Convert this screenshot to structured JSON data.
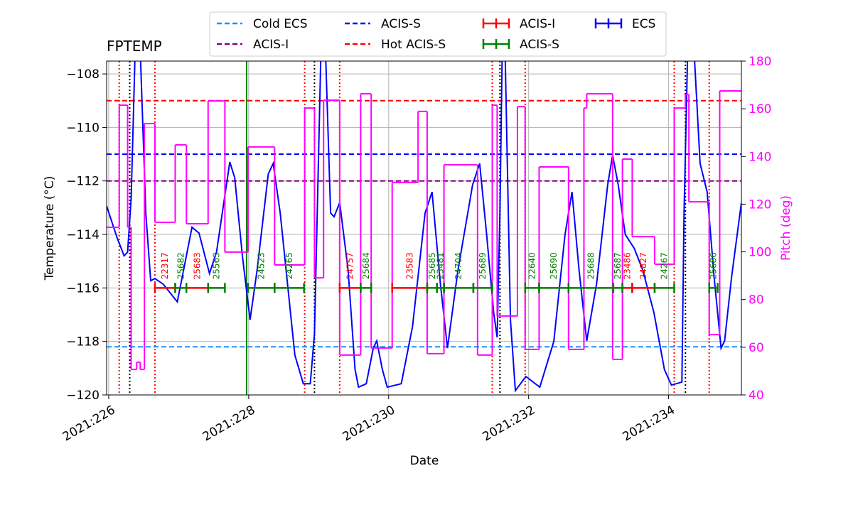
{
  "chart_data": {
    "type": "line",
    "title": "FPTEMP",
    "xlabel": "Date",
    "ylabel": "Temperature (°C)",
    "y2label": "Pitch (deg)",
    "xlim": [
      225.97,
      235.04
    ],
    "ylim": [
      -120,
      -107.52
    ],
    "y2lim": [
      40,
      180
    ],
    "xticks": [
      {
        "value": 226,
        "label": "2021:226"
      },
      {
        "value": 228,
        "label": "2021:228"
      },
      {
        "value": 230,
        "label": "2021:230"
      },
      {
        "value": 232,
        "label": "2021:232"
      },
      {
        "value": 234,
        "label": "2021:234"
      }
    ],
    "yticks": [
      {
        "value": -120,
        "label": "−120"
      },
      {
        "value": -118,
        "label": "−118"
      },
      {
        "value": -116,
        "label": "−116"
      },
      {
        "value": -114,
        "label": "−114"
      },
      {
        "value": -112,
        "label": "−112"
      },
      {
        "value": -110,
        "label": "−110"
      },
      {
        "value": -108,
        "label": "−108"
      }
    ],
    "y2ticks": [
      40,
      60,
      80,
      100,
      120,
      140,
      160,
      180
    ],
    "grid": true,
    "limits": [
      {
        "name": "Cold ECS",
        "value": -118.2,
        "color": "#1e90ff"
      },
      {
        "name": "ACIS-I",
        "value": -112,
        "color": "#800080"
      },
      {
        "name": "ACIS-S",
        "value": -111,
        "color": "#0000ff"
      },
      {
        "name": "Hot ACIS-S",
        "value": -109,
        "color": "#ff0000"
      }
    ],
    "series": [
      {
        "name": "ECS",
        "color": "#0000ff",
        "x": [
          225.97,
          226.12,
          226.22,
          226.27,
          226.32,
          226.41,
          226.53,
          226.6,
          226.66,
          226.78,
          226.98,
          227.07,
          227.19,
          227.29,
          227.44,
          227.54,
          227.73,
          227.8,
          227.91,
          228.02,
          228.12,
          228.28,
          228.35,
          228.45,
          228.66,
          228.78,
          228.88,
          228.94,
          229.06,
          229.17,
          229.22,
          229.3,
          229.42,
          229.52,
          229.57,
          229.68,
          229.78,
          229.83,
          229.91,
          229.98,
          230.18,
          230.34,
          230.52,
          230.62,
          230.74,
          230.84,
          230.99,
          231.2,
          231.3,
          231.4,
          231.5,
          231.55,
          231.59,
          231.64,
          231.74,
          231.81,
          231.96,
          232.16,
          232.36,
          232.52,
          232.62,
          232.72,
          232.83,
          232.97,
          233.13,
          233.2,
          233.28,
          233.38,
          233.51,
          233.63,
          233.79,
          233.94,
          234.04,
          234.19,
          234.22,
          234.3,
          234.45,
          234.55,
          234.65,
          234.75,
          234.8,
          234.9,
          235.04
        ],
        "values": [
          -112.94,
          -114.13,
          -114.8,
          -114.66,
          -112.67,
          -104,
          -113.2,
          -115.73,
          -115.65,
          -115.86,
          -116.52,
          -115.33,
          -113.73,
          -113.95,
          -115.46,
          -114.66,
          -111.29,
          -111.88,
          -114.8,
          -117.19,
          -115.33,
          -111.74,
          -111.35,
          -113.2,
          -118.51,
          -119.58,
          -119.58,
          -117.72,
          -104,
          -113.2,
          -113.34,
          -112.81,
          -115.33,
          -119.05,
          -119.71,
          -119.58,
          -118.25,
          -117.98,
          -119.05,
          -119.71,
          -119.58,
          -117.45,
          -113.2,
          -112.41,
          -115.86,
          -118.25,
          -115.33,
          -112.14,
          -111.35,
          -114,
          -116.92,
          -117.85,
          -113.2,
          -104,
          -117.19,
          -119.84,
          -119.31,
          -119.71,
          -118,
          -114,
          -112.41,
          -115.33,
          -117.98,
          -115.86,
          -112.14,
          -111.03,
          -112.14,
          -114,
          -114.53,
          -115.33,
          -116.92,
          -119.05,
          -119.63,
          -119.52,
          -113.2,
          -104,
          -111.35,
          -112.41,
          -115.59,
          -118.25,
          -117.98,
          -115.59,
          -112.81
        ]
      },
      {
        "color": "#ff00ff",
        "axis": "y2",
        "drawstyle": "steps-post",
        "x": [
          225.97,
          226.15,
          226.27,
          226.32,
          226.4,
          226.45,
          226.51,
          226.66,
          226.95,
          227.11,
          227.42,
          227.66,
          227.99,
          228.37,
          228.8,
          228.94,
          229.07,
          229.3,
          229.6,
          229.75,
          230.05,
          230.42,
          230.55,
          230.79,
          231.27,
          231.48,
          231.55,
          231.84,
          231.95,
          232.15,
          232.57,
          232.79,
          232.83,
          233.2,
          233.34,
          233.48,
          233.8,
          234.08,
          234.24,
          234.29,
          234.58,
          234.73
        ],
        "values": [
          110.3,
          161.5,
          110.3,
          50.7,
          53.7,
          50.7,
          153.8,
          112.4,
          144.9,
          111.8,
          163.3,
          99.9,
          144,
          94.5,
          160.3,
          89.1,
          163.6,
          56.7,
          166.3,
          59.7,
          129.1,
          158.9,
          57.3,
          136.5,
          56.7,
          161.5,
          73.1,
          160.9,
          59.1,
          135.6,
          59.1,
          160.3,
          166.3,
          54.9,
          138.9,
          106.4,
          94.8,
          160.3,
          166,
          121,
          65.3,
          167.5
        ]
      }
    ],
    "obsid_y": -116,
    "obsid_groups": [
      {
        "name": "ACIS-I",
        "color": "#ff0000",
        "obsids": [
          {
            "label": "22317",
            "start": 226.66,
            "stop": 226.95
          },
          {
            "label": "25683",
            "start": 227.11,
            "stop": 227.42
          },
          {
            "label": "24757",
            "start": 229.3,
            "stop": 229.6
          },
          {
            "label": "23583",
            "start": 230.05,
            "stop": 230.55
          },
          {
            "label": "23486",
            "start": 233.34,
            "stop": 233.48
          },
          {
            "label": "24827",
            "start": 233.48,
            "stop": 233.8
          }
        ]
      },
      {
        "name": "ACIS-S",
        "color": "#008000",
        "obsids": [
          {
            "label": "25682",
            "start": 226.95,
            "stop": 227.11
          },
          {
            "label": "25563",
            "start": 227.42,
            "stop": 227.66
          },
          {
            "label": "24523",
            "start": 227.99,
            "stop": 228.37
          },
          {
            "label": "24265",
            "start": 228.37,
            "stop": 228.79
          },
          {
            "label": "25684",
            "start": 229.6,
            "stop": 229.75
          },
          {
            "label": "25685",
            "start": 230.55,
            "stop": 230.69
          },
          {
            "label": "23481",
            "start": 230.69,
            "stop": 230.79
          },
          {
            "label": "24704",
            "start": 230.79,
            "stop": 231.21
          },
          {
            "label": "25689",
            "start": 231.21,
            "stop": 231.48
          },
          {
            "label": "22640",
            "start": 231.95,
            "stop": 232.15
          },
          {
            "label": "25690",
            "start": 232.15,
            "stop": 232.57
          },
          {
            "label": "25688",
            "start": 232.57,
            "stop": 233.21
          },
          {
            "label": "25687",
            "start": 233.21,
            "stop": 233.34
          },
          {
            "label": "24267",
            "start": 233.8,
            "stop": 234.08
          },
          {
            "label": "25686",
            "start": 234.58,
            "stop": 234.7
          }
        ]
      }
    ],
    "red_vlines": [
      226.15,
      226.66,
      228.8,
      229.3,
      231.48,
      231.95,
      234.08,
      234.58
    ],
    "black_vlines": [
      226.3,
      228.94,
      231.59,
      234.24
    ],
    "green_vlines": [
      227.97
    ]
  }
}
